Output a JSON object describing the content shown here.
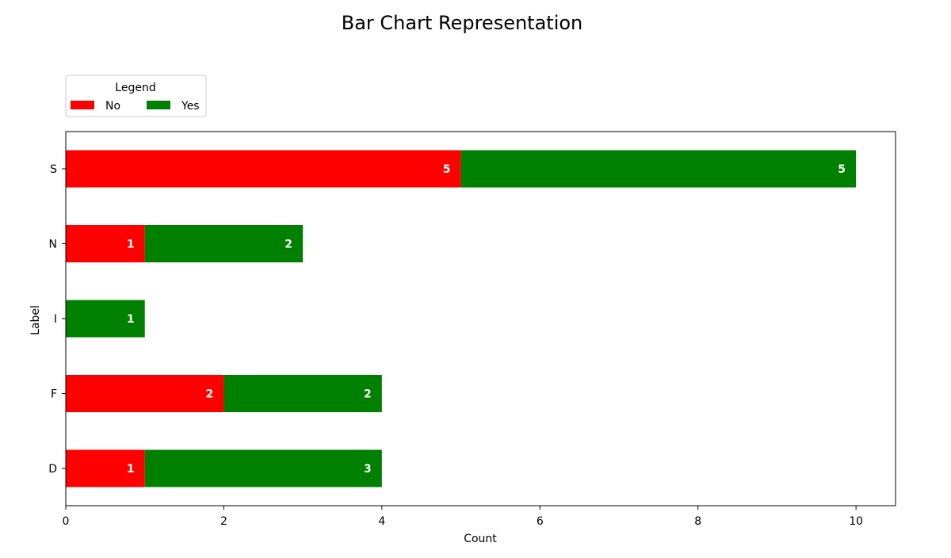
{
  "chart_data": {
    "type": "bar",
    "orientation": "horizontal",
    "stacked": true,
    "title": "Bar Chart Representation",
    "xlabel": "Count",
    "ylabel": "Label",
    "categories": [
      "D",
      "F",
      "I",
      "N",
      "S"
    ],
    "series": [
      {
        "name": "No",
        "color": "#ff0000",
        "values": [
          1,
          2,
          0,
          1,
          5
        ]
      },
      {
        "name": "Yes",
        "color": "#008000",
        "values": [
          3,
          2,
          1,
          2,
          5
        ]
      }
    ],
    "xlim": [
      0,
      10.5
    ],
    "xticks": [
      0,
      2,
      4,
      6,
      8,
      10
    ],
    "grid": false,
    "legend": {
      "title": "Legend",
      "placement": "upper-left-outside"
    }
  }
}
